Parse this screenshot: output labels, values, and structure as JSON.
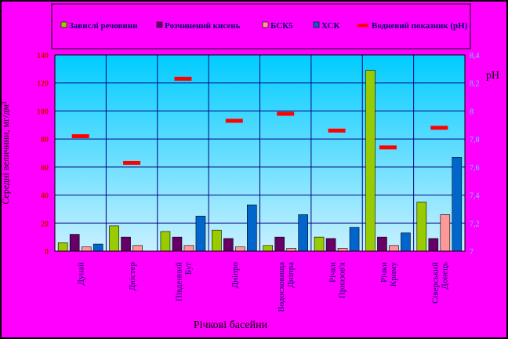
{
  "chart_data": {
    "type": "bar",
    "title": "",
    "xlabel": "Річкові басейни",
    "ylabel": "Середні величини, мг/дм³",
    "y2label": "pH",
    "ylim": [
      0,
      140
    ],
    "y2lim": [
      7,
      8.4
    ],
    "yticks": [
      "0",
      "20",
      "40",
      "60",
      "80",
      "100",
      "120",
      "140"
    ],
    "y2ticks": [
      "7",
      "7,2",
      "7,4",
      "7,6",
      "7,8",
      "8",
      "8,2",
      "8,4"
    ],
    "grid": true,
    "legend_position": "top",
    "categories": [
      "Дунай",
      "Дністер",
      "Південний Буг",
      "Дніпро",
      "Водосховища Дніпра",
      "Річки Приазов'я",
      "Річки Криму",
      "Сіверський Донець"
    ],
    "series": [
      {
        "name": "Завислі речовини",
        "axis": "left",
        "kind": "bar",
        "color": "#99cc00",
        "values": [
          6,
          18,
          14,
          15,
          4,
          10,
          129,
          35
        ]
      },
      {
        "name": "Розчинений кисень",
        "axis": "left",
        "kind": "bar",
        "color": "#660066",
        "values": [
          12,
          10,
          10,
          9,
          10,
          9,
          10,
          9
        ]
      },
      {
        "name": "БСК5",
        "axis": "left",
        "kind": "bar",
        "color": "#ff9999",
        "values": [
          3,
          4,
          4,
          3,
          2,
          2,
          4,
          26
        ]
      },
      {
        "name": "ХСК",
        "axis": "left",
        "kind": "bar",
        "color": "#0066cc",
        "values": [
          5,
          0,
          25,
          33,
          26,
          17,
          13,
          67
        ]
      },
      {
        "name": "Водневий показник (pH)",
        "axis": "right",
        "kind": "marker",
        "color": "#ff0000",
        "values": [
          7.82,
          7.63,
          8.23,
          7.93,
          7.98,
          7.86,
          7.74,
          7.88
        ]
      }
    ]
  },
  "colors": {
    "background": "#ff00ff",
    "plot_top": "#00ccff",
    "plot_bottom": "#c8f0ff",
    "axis_text_left": "#cc0000",
    "axis_text_right": "#66ccff",
    "grid": "#000080"
  }
}
